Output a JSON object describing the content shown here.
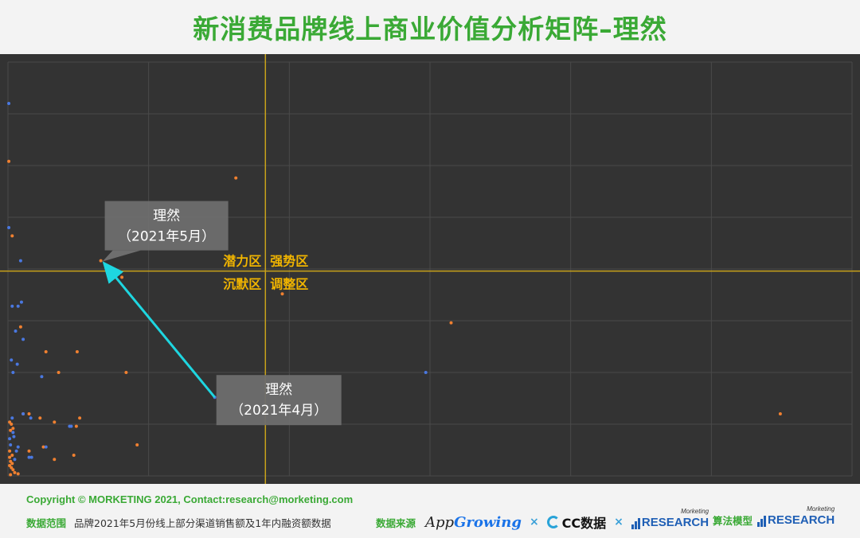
{
  "title": "新消费品牌线上商业价值分析矩阵–理然",
  "chart_data": {
    "type": "scatter",
    "title": "新消费品牌线上商业价值分析矩阵–理然",
    "xlabel": "",
    "ylabel": "",
    "xlim": [
      0,
      100
    ],
    "ylim": [
      0,
      100
    ],
    "grid": true,
    "divider": {
      "x": 30.5,
      "y": 49.5
    },
    "quadrants": {
      "top_left": "潜力区",
      "top_right": "强势区",
      "bottom_left": "沉默区",
      "bottom_right": "调整区"
    },
    "series": [
      {
        "color": "#f08030",
        "points": [
          [
            0.1,
            76
          ],
          [
            0.5,
            58
          ],
          [
            11,
            52
          ],
          [
            27,
            72
          ],
          [
            13.5,
            48
          ],
          [
            32.5,
            44
          ],
          [
            52.5,
            37
          ],
          [
            1.5,
            36
          ],
          [
            4.5,
            30
          ],
          [
            8.2,
            30
          ],
          [
            6,
            25
          ],
          [
            14,
            25
          ],
          [
            1.8,
            15
          ],
          [
            2.5,
            15
          ],
          [
            3.8,
            14
          ],
          [
            5.5,
            13
          ],
          [
            8.5,
            14
          ],
          [
            0.2,
            13
          ],
          [
            0.4,
            12.5
          ],
          [
            0.6,
            11.5
          ],
          [
            0.3,
            11
          ],
          [
            15.3,
            7.5
          ],
          [
            91.5,
            15
          ],
          [
            4.2,
            7
          ],
          [
            0.2,
            6
          ],
          [
            0.5,
            5
          ],
          [
            0.2,
            4.5
          ],
          [
            0.3,
            3.5
          ],
          [
            0.5,
            3
          ],
          [
            0.2,
            2.5
          ],
          [
            0.4,
            2
          ],
          [
            0.6,
            1.5
          ],
          [
            2.5,
            6
          ],
          [
            5.5,
            4
          ],
          [
            7.8,
            5
          ],
          [
            8.1,
            12
          ],
          [
            0.8,
            0.8
          ],
          [
            1.2,
            0.5
          ],
          [
            0.3,
            0.3
          ]
        ]
      },
      {
        "color": "#4a78e0",
        "points": [
          [
            0.1,
            90
          ],
          [
            0.1,
            60
          ],
          [
            1.5,
            52
          ],
          [
            0.5,
            41
          ],
          [
            1.2,
            41
          ],
          [
            1.6,
            42
          ],
          [
            0.9,
            35
          ],
          [
            1.8,
            33
          ],
          [
            0.4,
            28
          ],
          [
            1.1,
            27
          ],
          [
            0.6,
            25
          ],
          [
            4,
            24
          ],
          [
            24.5,
            19
          ],
          [
            49.5,
            25
          ],
          [
            1.8,
            15
          ],
          [
            0.5,
            14
          ],
          [
            2.7,
            14
          ],
          [
            7.3,
            12
          ],
          [
            0.6,
            10.5
          ],
          [
            0.2,
            9
          ],
          [
            0.7,
            9.5
          ],
          [
            0.3,
            7.5
          ],
          [
            1.2,
            7
          ],
          [
            4.5,
            7
          ],
          [
            2.5,
            4.5
          ],
          [
            2.8,
            4.5
          ],
          [
            7.5,
            12
          ],
          [
            1,
            6
          ],
          [
            0.8,
            4
          ]
        ]
      }
    ],
    "annotations": [
      {
        "line1": "理然",
        "line2": "（2021年5月）",
        "x": 11,
        "y": 52
      },
      {
        "line1": "理然",
        "line2": "（2021年4月）",
        "x": 24.5,
        "y": 19
      }
    ],
    "arrow": {
      "from": [
        24.5,
        19
      ],
      "to": [
        11,
        52
      ],
      "color": "#1ed6e0"
    }
  },
  "footer": {
    "copyright": "Copyright © MORKETING 2021, Contact:research@morketing.com",
    "scope_label": "数据范围",
    "scope_text": "品牌2021年5月份线上部分渠道销售额及1年内融资额数据",
    "source_label": "数据来源",
    "appgrowing_a": "App",
    "appgrowing_b": "Growing",
    "times": "×",
    "cc_text": "CC数据",
    "research_text": "RESEARCH",
    "research_small": "Morketing",
    "algo_label": "算法模型"
  }
}
